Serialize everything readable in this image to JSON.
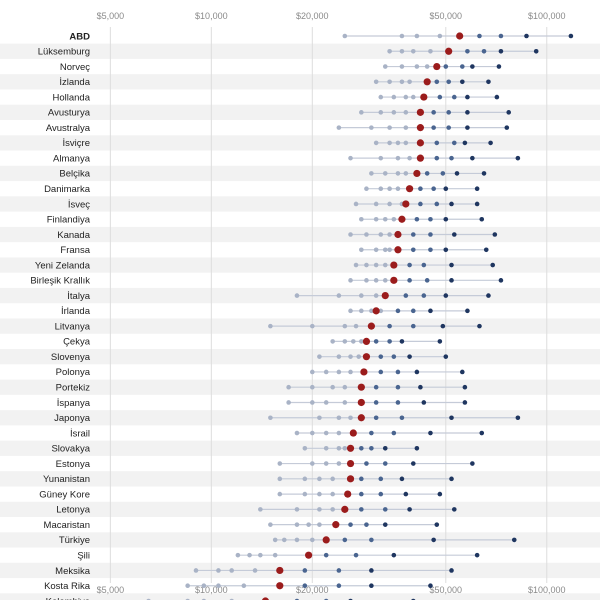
{
  "chart_data": {
    "type": "scatter",
    "x_scale": "log",
    "xlim": [
      4500,
      130000
    ],
    "x_ticks": [
      {
        "value": 5000,
        "label": "$5,000"
      },
      {
        "value": 10000,
        "label": "$10,000"
      },
      {
        "value": 20000,
        "label": "$20,000"
      },
      {
        "value": 50000,
        "label": "$50,000"
      },
      {
        "value": 100000,
        "label": "$100,000"
      }
    ],
    "colors": {
      "median": "#9b1c1c",
      "low": "#a9b3c6",
      "mid": "#4a6590",
      "high": "#1f3660",
      "range_line": "#c5cbd8",
      "band": "#f2f2f2",
      "grid": "#dddddd"
    },
    "rows": [
      {
        "country": "ABD",
        "bold": true,
        "median": 55000,
        "values": [
          25000,
          37000,
          41000,
          48000,
          63000,
          73000,
          87000,
          118000
        ]
      },
      {
        "country": "Lüksemburg",
        "median": 51000,
        "values": [
          34000,
          37000,
          40000,
          45000,
          58000,
          65000,
          73000,
          93000
        ]
      },
      {
        "country": "Norveç",
        "median": 47000,
        "values": [
          33000,
          37000,
          41000,
          44000,
          50000,
          56000,
          60000,
          72000
        ]
      },
      {
        "country": "İzlanda",
        "median": 44000,
        "values": [
          31000,
          34000,
          37000,
          39000,
          47000,
          51000,
          56000,
          67000
        ]
      },
      {
        "country": "Hollanda",
        "median": 43000,
        "values": [
          32000,
          35000,
          38000,
          40000,
          48000,
          53000,
          58000,
          71000
        ]
      },
      {
        "country": "Avusturya",
        "median": 42000,
        "values": [
          28000,
          32000,
          35000,
          38000,
          46000,
          51000,
          58000,
          77000
        ]
      },
      {
        "country": "Avustralya",
        "median": 42000,
        "values": [
          24000,
          30000,
          34000,
          38000,
          46000,
          51000,
          58000,
          76000
        ]
      },
      {
        "country": "İsviçre",
        "median": 42000,
        "values": [
          31000,
          34000,
          36000,
          38000,
          47000,
          53000,
          57000,
          68000
        ]
      },
      {
        "country": "Almanya",
        "median": 42000,
        "values": [
          26000,
          32000,
          36000,
          39000,
          47000,
          52000,
          60000,
          82000
        ]
      },
      {
        "country": "Belçika",
        "median": 41000,
        "values": [
          30000,
          33000,
          36000,
          38000,
          44000,
          49000,
          54000,
          65000
        ]
      },
      {
        "country": "Danimarka",
        "median": 39000,
        "values": [
          29000,
          32000,
          34000,
          36000,
          42000,
          46000,
          50000,
          62000
        ]
      },
      {
        "country": "İsveç",
        "median": 38000,
        "values": [
          27000,
          31000,
          34000,
          37000,
          42000,
          47000,
          52000,
          62000
        ]
      },
      {
        "country": "Finlandiya",
        "median": 37000,
        "values": [
          28000,
          31000,
          33000,
          35000,
          41000,
          45000,
          50000,
          64000
        ]
      },
      {
        "country": "Kanada",
        "median": 36000,
        "values": [
          26000,
          29000,
          32000,
          34000,
          40000,
          45000,
          53000,
          70000
        ]
      },
      {
        "country": "Fransa",
        "median": 36000,
        "values": [
          28000,
          31000,
          33000,
          34000,
          40000,
          45000,
          50000,
          66000
        ]
      },
      {
        "country": "Yeni Zelanda",
        "median": 35000,
        "values": [
          27000,
          29000,
          31000,
          33000,
          39000,
          43000,
          52000,
          69000
        ]
      },
      {
        "country": "Birleşik Krallık",
        "median": 35000,
        "values": [
          26000,
          29000,
          31000,
          33000,
          39000,
          44000,
          52000,
          73000
        ]
      },
      {
        "country": "İtalya",
        "median": 33000,
        "values": [
          18000,
          24000,
          28000,
          31000,
          38000,
          43000,
          50000,
          67000
        ]
      },
      {
        "country": "İrlanda",
        "median": 31000,
        "values": [
          26000,
          28000,
          30000,
          32000,
          36000,
          40000,
          45000,
          58000
        ]
      },
      {
        "country": "Litvanya",
        "median": 30000,
        "values": [
          15000,
          20000,
          25000,
          27000,
          34000,
          40000,
          49000,
          63000
        ]
      },
      {
        "country": "Çekya",
        "median": 29000,
        "values": [
          23000,
          25000,
          26500,
          28000,
          31000,
          34000,
          37000,
          48000
        ]
      },
      {
        "country": "Slovenya",
        "median": 29000,
        "values": [
          21000,
          24000,
          26000,
          27500,
          32000,
          35000,
          39000,
          50000
        ]
      },
      {
        "country": "Polonya",
        "median": 28500,
        "values": [
          20000,
          22000,
          24000,
          26000,
          32000,
          36000,
          41000,
          56000
        ]
      },
      {
        "country": "Portekiz",
        "median": 28000,
        "values": [
          17000,
          20000,
          23000,
          25000,
          31000,
          36000,
          42000,
          57000
        ]
      },
      {
        "country": "İspanya",
        "median": 28000,
        "values": [
          17000,
          20000,
          22000,
          25000,
          31000,
          36000,
          43000,
          57000
        ]
      },
      {
        "country": "Japonya",
        "median": 28000,
        "values": [
          15000,
          21000,
          24000,
          26000,
          31000,
          37000,
          52000,
          82000
        ]
      },
      {
        "country": "İsrail",
        "median": 26500,
        "values": [
          18000,
          20000,
          22000,
          24000,
          30000,
          35000,
          45000,
          64000
        ]
      },
      {
        "country": "Slovakya",
        "median": 26000,
        "values": [
          19000,
          22000,
          24000,
          25000,
          28000,
          30000,
          33000,
          41000
        ]
      },
      {
        "country": "Estonya",
        "median": 26000,
        "values": [
          16000,
          20000,
          22000,
          24000,
          29000,
          33000,
          40000,
          60000
        ]
      },
      {
        "country": "Yunanistan",
        "median": 26000,
        "values": [
          16000,
          19000,
          21000,
          23000,
          28000,
          32000,
          37000,
          52000
        ]
      },
      {
        "country": "Güney Kore",
        "median": 25500,
        "values": [
          16000,
          19000,
          21000,
          23000,
          28000,
          32000,
          38000,
          48000
        ]
      },
      {
        "country": "Letonya",
        "median": 25000,
        "values": [
          14000,
          18000,
          21000,
          23000,
          28000,
          33000,
          39000,
          53000
        ]
      },
      {
        "country": "Macaristan",
        "median": 23500,
        "values": [
          15000,
          18000,
          19500,
          21000,
          26000,
          29000,
          33000,
          47000
        ]
      },
      {
        "country": "Türkiye",
        "median": 22000,
        "values": [
          15500,
          16500,
          18000,
          20000,
          25000,
          30000,
          46000,
          80000
        ]
      },
      {
        "country": "Şili",
        "median": 19500,
        "values": [
          12000,
          13000,
          14000,
          15500,
          22000,
          27000,
          35000,
          62000
        ]
      },
      {
        "country": "Meksika",
        "median": 16000,
        "values": [
          9000,
          10500,
          11500,
          13500,
          19000,
          24000,
          30000,
          52000
        ]
      },
      {
        "country": "Kosta Rika",
        "median": 16000,
        "values": [
          8500,
          9500,
          10500,
          12500,
          19000,
          24000,
          30000,
          45000
        ]
      },
      {
        "country": "Kolombiya",
        "median": 14500,
        "values": [
          6500,
          8500,
          9500,
          11500,
          18000,
          22000,
          26000,
          40000
        ]
      }
    ]
  }
}
